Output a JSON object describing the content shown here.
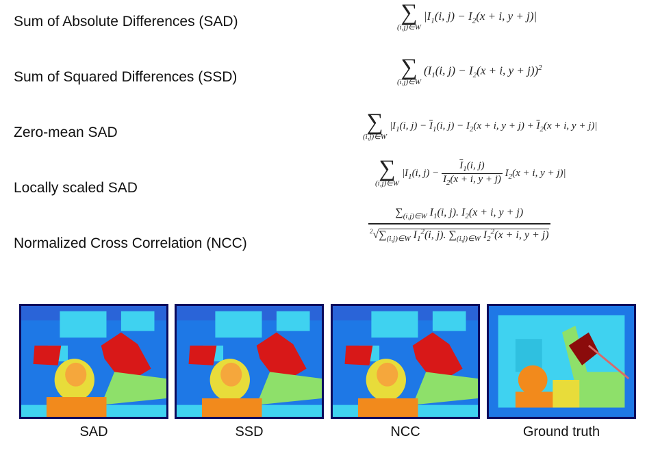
{
  "measures": [
    {
      "label": "Sum of Absolute Differences (SAD)"
    },
    {
      "label": "Sum of Squared Differences (SSD)"
    },
    {
      "label": "Zero-mean SAD"
    },
    {
      "label": "Locally scaled SAD"
    },
    {
      "label": "Normalized Cross Correlation (NCC)"
    }
  ],
  "maps": [
    {
      "caption": "SAD"
    },
    {
      "caption": "SSD"
    },
    {
      "caption": "NCC"
    },
    {
      "caption": "Ground truth"
    }
  ],
  "colors": {
    "border": "#0b0a5c",
    "far": "#1e78e6",
    "mid": "#3fd2f0",
    "near_green": "#8ee06a",
    "near_yellow": "#e8dc3a",
    "near_orange": "#f28a1c",
    "closest_red": "#d81818"
  }
}
